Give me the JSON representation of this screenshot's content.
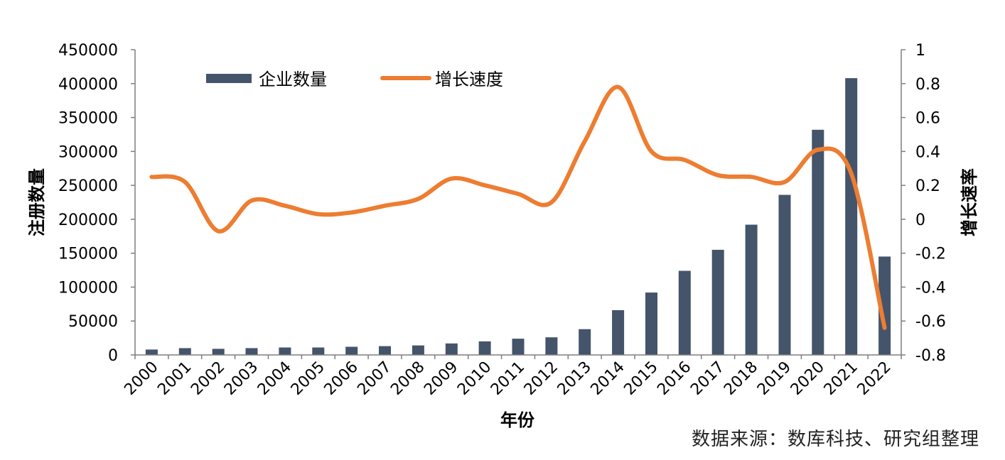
{
  "chart_data": {
    "type": "bar",
    "categories": [
      "2000",
      "2001",
      "2002",
      "2003",
      "2004",
      "2005",
      "2006",
      "2007",
      "2008",
      "2009",
      "2010",
      "2011",
      "2012",
      "2013",
      "2014",
      "2015",
      "2016",
      "2017",
      "2018",
      "2019",
      "2020",
      "2021",
      "2022"
    ],
    "series": [
      {
        "name": "企业数量",
        "type": "bar",
        "axis": "left",
        "color": "#44546a",
        "values": [
          8000,
          10000,
          9000,
          10000,
          11000,
          11000,
          12000,
          13000,
          14000,
          17000,
          20000,
          24000,
          26000,
          38000,
          66000,
          92000,
          124000,
          155000,
          192000,
          236000,
          332000,
          408000,
          145000
        ]
      },
      {
        "name": "增长速度",
        "type": "line",
        "axis": "right",
        "color": "#ed7d31",
        "values": [
          0.25,
          0.22,
          -0.07,
          0.11,
          0.08,
          0.03,
          0.04,
          0.08,
          0.12,
          0.24,
          0.2,
          0.15,
          0.1,
          0.46,
          0.78,
          0.4,
          0.35,
          0.26,
          0.25,
          0.22,
          0.41,
          0.27,
          -0.64
        ]
      }
    ],
    "xlabel": "年份",
    "ylabel": "注册数量",
    "y2label": "增长速率",
    "ylim": [
      0,
      450000
    ],
    "y2lim": [
      -0.8,
      1
    ],
    "yticks": [
      "0",
      "50000",
      "100000",
      "150000",
      "200000",
      "250000",
      "300000",
      "350000",
      "400000",
      "450000"
    ],
    "y2ticks": [
      "-0.8",
      "-0.6",
      "-0.4",
      "-0.2",
      "0",
      "0.2",
      "0.4",
      "0.6",
      "0.8",
      "1"
    ],
    "legend_position": "top-left",
    "grid": false,
    "source": "数据来源：数库科技、研究组整理"
  }
}
